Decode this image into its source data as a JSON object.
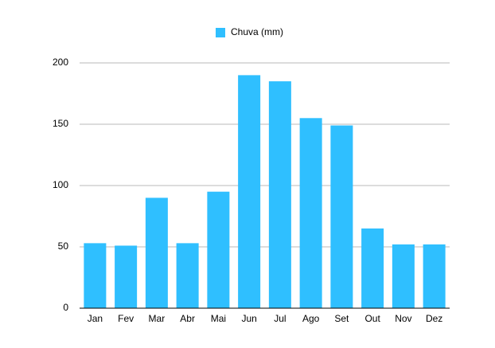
{
  "chart_data": {
    "type": "bar",
    "categories": [
      "Jan",
      "Fev",
      "Mar",
      "Abr",
      "Mai",
      "Jun",
      "Jul",
      "Ago",
      "Set",
      "Out",
      "Nov",
      "Dez"
    ],
    "series": [
      {
        "name": "Chuva (mm)",
        "color": "#2fbfff",
        "values": [
          53,
          51,
          90,
          53,
          95,
          190,
          185,
          155,
          149,
          65,
          52,
          52
        ]
      }
    ],
    "ylim": [
      0,
      200
    ],
    "yticks": [
      0,
      50,
      100,
      150,
      200
    ],
    "grid": true,
    "legend": "top"
  }
}
